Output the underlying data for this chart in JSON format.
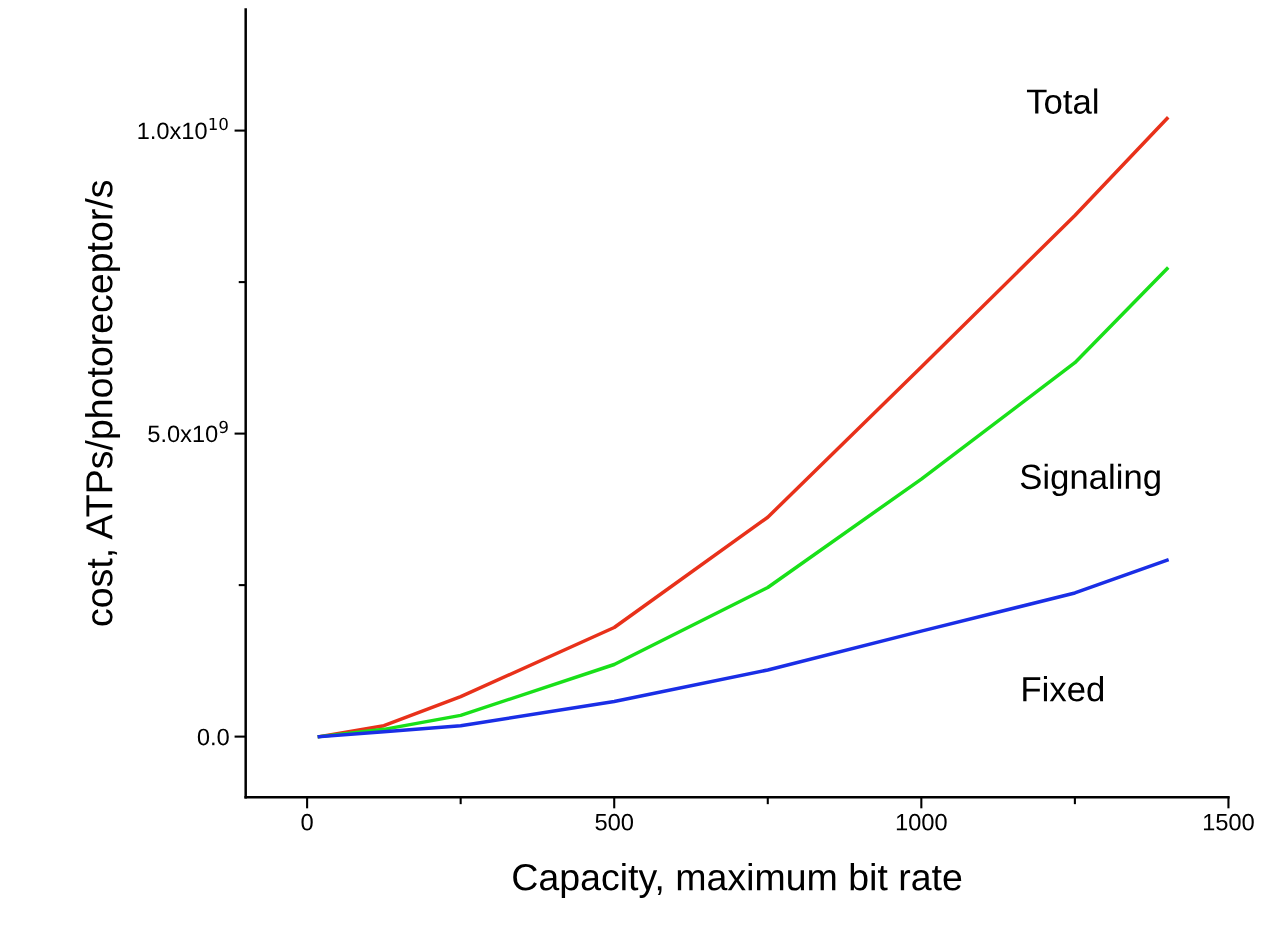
{
  "chart_data": {
    "type": "line",
    "xlabel": "Capacity, maximum bit rate",
    "ylabel": "cost, ATPs/photoreceptor/s",
    "x": [
      20,
      125,
      250,
      500,
      750,
      1000,
      1250,
      1400
    ],
    "series": [
      {
        "name": "Total",
        "color": "#e8311a",
        "values": [
          0,
          180000000.0,
          660000000.0,
          1800000000.0,
          3620000000.0,
          6100000000.0,
          8600000000.0,
          10200000000.0
        ]
      },
      {
        "name": "Signaling",
        "color": "#19e019",
        "values": [
          0,
          120000000.0,
          350000000.0,
          1190000000.0,
          2460000000.0,
          4250000000.0,
          6170000000.0,
          7720000000.0
        ]
      },
      {
        "name": "Fixed",
        "color": "#1a2ee6",
        "values": [
          0,
          80000000.0,
          180000000.0,
          580000000.0,
          1100000000.0,
          1740000000.0,
          2370000000.0,
          2910000000.0
        ]
      }
    ],
    "xlim": [
      -100,
      1500
    ],
    "ylim": [
      -1000000000.0,
      12000000000.0
    ],
    "xticks": [
      0,
      {
        "value": 250,
        "label": null
      },
      500,
      {
        "value": 750,
        "label": null
      },
      1000,
      {
        "value": 1250,
        "label": null
      },
      1500
    ],
    "yticks": [
      {
        "value": 0,
        "label": "0.0"
      },
      {
        "value": 2500000000.0,
        "label": null
      },
      {
        "value": 5000000000.0,
        "label": "5.0x10$^{9}$"
      },
      {
        "value": 7500000000.0,
        "label": null
      },
      {
        "value": 10000000000.0,
        "label": "1.0x10$^{10}$"
      }
    ],
    "grid": false,
    "legend": false,
    "marker": "none",
    "line_style": "solid"
  }
}
